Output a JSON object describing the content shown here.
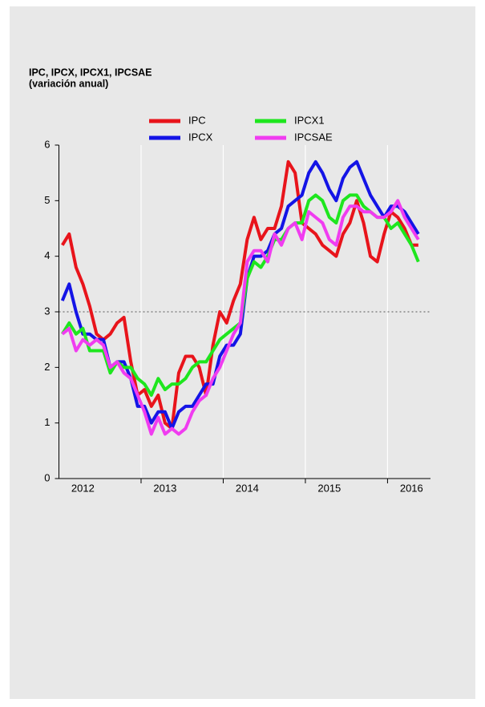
{
  "chart_data": {
    "type": "line",
    "title": "IPC, IPCX, IPCX1, IPCSAE",
    "subtitle": "(variación anual)",
    "categories": [
      null,
      null,
      null,
      "2012",
      null,
      null,
      null,
      null,
      null,
      null,
      null,
      null,
      null,
      null,
      null,
      "2013",
      null,
      null,
      null,
      null,
      null,
      null,
      null,
      null,
      null,
      null,
      null,
      "2014",
      null,
      null,
      null,
      null,
      null,
      null,
      null,
      null,
      null,
      null,
      null,
      "2015",
      null,
      null,
      null,
      null,
      null,
      null,
      null,
      null,
      null,
      null,
      null,
      "2016",
      null
    ],
    "series": [
      {
        "name": "IPC",
        "color": "#e8141b",
        "values": [
          4.2,
          4.4,
          3.8,
          3.5,
          3.1,
          2.6,
          2.5,
          2.6,
          2.8,
          2.9,
          2.1,
          1.5,
          1.6,
          1.3,
          1.5,
          1.0,
          0.9,
          1.9,
          2.2,
          2.2,
          2.0,
          1.5,
          2.4,
          3.0,
          2.8,
          3.2,
          3.5,
          4.3,
          4.7,
          4.3,
          4.5,
          4.5,
          4.9,
          5.7,
          5.5,
          4.6,
          4.5,
          4.4,
          4.2,
          4.1,
          4.0,
          4.4,
          4.6,
          5.0,
          4.6,
          4.0,
          3.9,
          4.4,
          4.8,
          4.7,
          4.5,
          4.2,
          4.2
        ]
      },
      {
        "name": "IPCX",
        "color": "#1414e6",
        "values": [
          3.2,
          3.5,
          3.0,
          2.6,
          2.6,
          2.5,
          2.5,
          2.0,
          2.1,
          2.1,
          1.8,
          1.3,
          1.3,
          1.0,
          1.2,
          1.2,
          0.9,
          1.2,
          1.3,
          1.3,
          1.5,
          1.7,
          1.7,
          2.2,
          2.4,
          2.4,
          2.6,
          3.6,
          4.0,
          4.0,
          4.1,
          4.4,
          4.5,
          4.9,
          5.0,
          5.1,
          5.5,
          5.7,
          5.5,
          5.2,
          5.0,
          5.4,
          5.6,
          5.7,
          5.4,
          5.1,
          4.9,
          4.7,
          4.9,
          4.9,
          4.8,
          4.6,
          4.4
        ]
      },
      {
        "name": "IPCX1",
        "color": "#1ee61e",
        "values": [
          2.6,
          2.8,
          2.6,
          2.7,
          2.3,
          2.3,
          2.3,
          1.9,
          2.1,
          2.0,
          2.0,
          1.8,
          1.7,
          1.5,
          1.8,
          1.6,
          1.7,
          1.7,
          1.8,
          2.0,
          2.1,
          2.1,
          2.3,
          2.5,
          2.6,
          2.7,
          2.8,
          3.6,
          3.9,
          3.8,
          4.0,
          4.3,
          4.3,
          4.5,
          4.6,
          4.6,
          5.0,
          5.1,
          5.0,
          4.7,
          4.6,
          5.0,
          5.1,
          5.1,
          4.9,
          4.8,
          4.7,
          4.7,
          4.5,
          4.6,
          4.4,
          4.2,
          3.9
        ]
      },
      {
        "name": "IPCSAE",
        "color": "#f03cf0",
        "values": [
          2.6,
          2.7,
          2.3,
          2.5,
          2.4,
          2.5,
          2.4,
          2.0,
          2.1,
          1.9,
          1.8,
          1.5,
          1.2,
          0.8,
          1.1,
          0.8,
          0.9,
          0.8,
          0.9,
          1.2,
          1.4,
          1.5,
          1.8,
          2.0,
          2.3,
          2.6,
          2.8,
          3.9,
          4.1,
          4.1,
          3.9,
          4.4,
          4.2,
          4.5,
          4.6,
          4.3,
          4.8,
          4.7,
          4.6,
          4.3,
          4.2,
          4.7,
          4.9,
          4.9,
          4.8,
          4.8,
          4.7,
          4.7,
          4.8,
          5.0,
          4.7,
          4.5,
          4.3
        ]
      }
    ],
    "ylim": [
      0,
      6
    ],
    "yticks": [
      0,
      1,
      2,
      3,
      4,
      5,
      6
    ],
    "reference_line": 3
  }
}
